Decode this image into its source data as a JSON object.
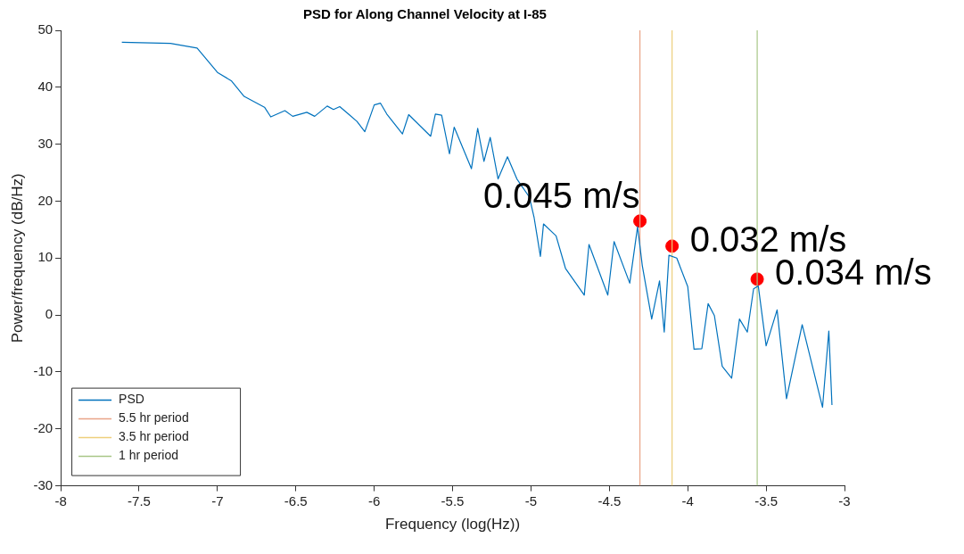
{
  "chart_data": {
    "type": "line",
    "title": "PSD for Along Channel Velocity at I-85",
    "xlabel": "Frequency (log(Hz))",
    "ylabel": "Power/frequency (dB/Hz)",
    "xlim": [
      -8,
      -3
    ],
    "xticks": [
      -8,
      -7.5,
      -7,
      -6.5,
      -6,
      -5.5,
      -5,
      -4.5,
      -4,
      -3.5,
      -3
    ],
    "ylim": [
      -30,
      50
    ],
    "yticks": [
      -30,
      -20,
      -10,
      0,
      10,
      20,
      30,
      40,
      50
    ],
    "grid": false,
    "legend": "bottom left",
    "marker": "none",
    "line_style": "solid",
    "series": [
      {
        "name": "PSD",
        "color": "#0072bd",
        "x": [
          -7.61,
          -7.3,
          -7.13,
          -7.0,
          -6.91,
          -6.83,
          -6.7,
          -6.66,
          -6.57,
          -6.52,
          -6.43,
          -6.38,
          -6.3,
          -6.26,
          -6.22,
          -6.16,
          -6.11,
          -6.06,
          -6.0,
          -5.96,
          -5.92,
          -5.82,
          -5.78,
          -5.64,
          -5.61,
          -5.57,
          -5.52,
          -5.49,
          -5.38,
          -5.34,
          -5.3,
          -5.26,
          -5.21,
          -5.15,
          -5.09,
          -5.01,
          -4.98,
          -4.94,
          -4.92,
          -4.84,
          -4.78,
          -4.66,
          -4.63,
          -4.51,
          -4.47,
          -4.37,
          -4.32,
          -4.29,
          -4.23,
          -4.18,
          -4.15,
          -4.12,
          -4.07,
          -4.0,
          -3.96,
          -3.91,
          -3.87,
          -3.83,
          -3.78,
          -3.72,
          -3.67,
          -3.62,
          -3.58,
          -3.55,
          -3.5,
          -3.43,
          -3.37,
          -3.27,
          -3.14,
          -3.1,
          -3.08
        ],
        "values": [
          47.9,
          47.7,
          46.9,
          42.6,
          41.1,
          38.4,
          36.5,
          34.8,
          35.9,
          34.9,
          35.6,
          34.9,
          36.7,
          36.1,
          36.6,
          35.2,
          34.0,
          32.2,
          36.9,
          37.2,
          35.3,
          31.8,
          35.2,
          31.4,
          35.3,
          35.1,
          28.3,
          33.0,
          25.7,
          32.8,
          27.0,
          31.2,
          23.9,
          27.8,
          23.9,
          20.7,
          17.1,
          10.3,
          16.0,
          13.9,
          8.2,
          3.5,
          12.4,
          3.5,
          12.9,
          5.6,
          15.5,
          8.7,
          -0.7,
          6.0,
          -3.0,
          10.5,
          10.0,
          5.0,
          -6.0,
          -5.9,
          2.0,
          -0.1,
          -9.0,
          -11.1,
          -0.7,
          -3.0,
          4.6,
          5.1,
          -5.4,
          0.9,
          -14.7,
          -1.7,
          -16.2,
          -2.8,
          -15.8
        ]
      },
      {
        "name": "5.5 hr period",
        "color": "#e9a487",
        "x": [
          -4.305,
          -4.305
        ],
        "values": [
          -30,
          50
        ]
      },
      {
        "name": "3.5 hr period",
        "color": "#edcf7c",
        "x": [
          -4.1,
          -4.1
        ],
        "values": [
          -30,
          50
        ]
      },
      {
        "name": "1 hr period",
        "color": "#a8c686",
        "x": [
          -3.557,
          -3.557
        ],
        "values": [
          -30,
          50
        ]
      },
      {
        "type": "scatter",
        "color": "#ff0000",
        "marker": "circle",
        "x": [
          -4.305,
          -4.1,
          -3.557
        ],
        "values": [
          16.5,
          12.1,
          6.3
        ]
      }
    ],
    "annotations": [
      {
        "text": "0.045 m/s",
        "x": -4.305,
        "y": 16.5
      },
      {
        "text": "0.032 m/s",
        "x": -4.1,
        "y": 12.1
      },
      {
        "text": "0.034 m/s",
        "x": -3.557,
        "y": 6.3
      }
    ]
  }
}
